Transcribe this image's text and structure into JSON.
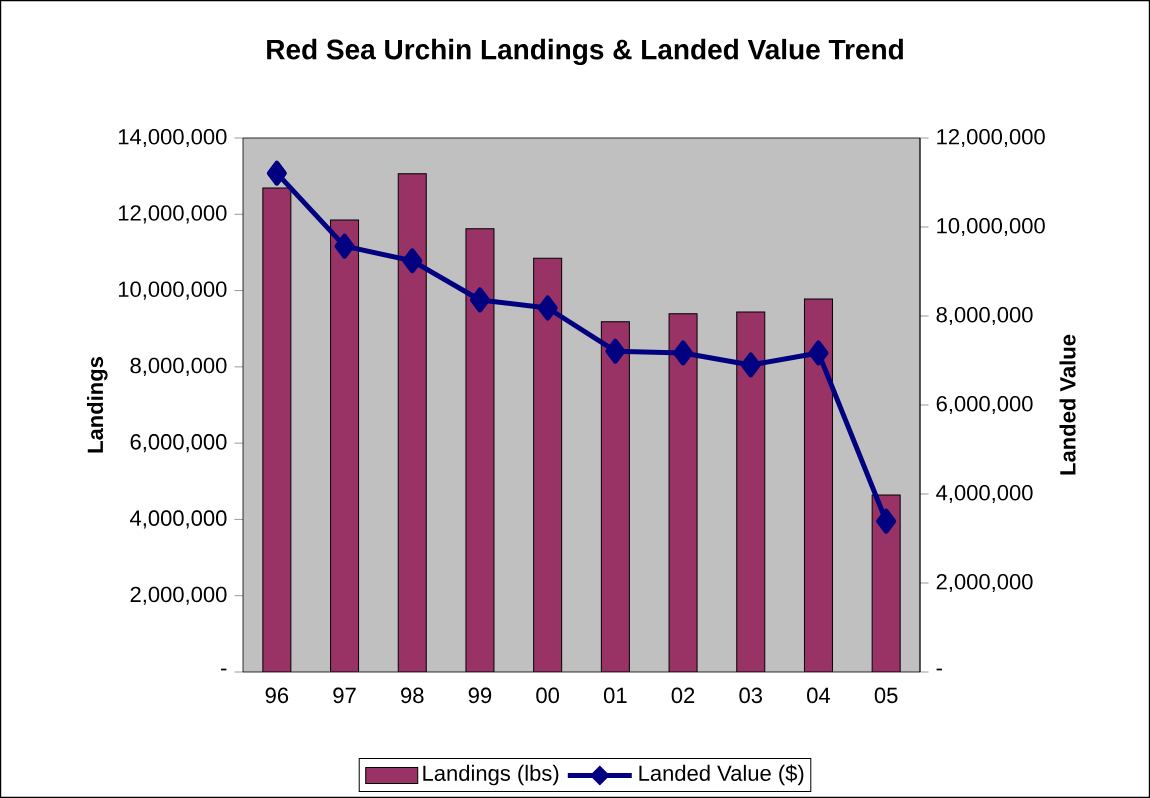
{
  "chart_data": {
    "type": "bar",
    "title": "Red Sea Urchin Landings & Landed Value Trend",
    "ylabel": "Landings",
    "y2label": "Landed Value",
    "categories": [
      "96",
      "97",
      "98",
      "99",
      "00",
      "01",
      "02",
      "03",
      "04",
      "05"
    ],
    "series": [
      {
        "name": "Landings (lbs)",
        "color": "#993366",
        "values": [
          12690000,
          11850000,
          13060000,
          11620000,
          10850000,
          9180000,
          9390000,
          9440000,
          9780000,
          4640000
        ]
      },
      {
        "name": "Landed Value ($)",
        "type": "line",
        "axis": "y2",
        "color": "#000080",
        "marker": "diamond",
        "values": [
          11210000,
          9570000,
          9240000,
          8360000,
          8180000,
          7210000,
          7170000,
          6900000,
          7170000,
          3390000
        ]
      }
    ],
    "ylim": [
      0,
      14000000
    ],
    "yticks": [
      {
        "value": 0,
        "label": "-"
      },
      {
        "value": 2000000,
        "label": "2,000,000"
      },
      {
        "value": 4000000,
        "label": "4,000,000"
      },
      {
        "value": 6000000,
        "label": "6,000,000"
      },
      {
        "value": 8000000,
        "label": "8,000,000"
      },
      {
        "value": 10000000,
        "label": "10,000,000"
      },
      {
        "value": 12000000,
        "label": "12,000,000"
      },
      {
        "value": 14000000,
        "label": "14,000,000"
      }
    ],
    "y2lim": [
      0,
      12000000
    ],
    "y2ticks": [
      {
        "value": 0,
        "label": "-"
      },
      {
        "value": 2000000,
        "label": "2,000,000"
      },
      {
        "value": 4000000,
        "label": "4,000,000"
      },
      {
        "value": 6000000,
        "label": "6,000,000"
      },
      {
        "value": 8000000,
        "label": "8,000,000"
      },
      {
        "value": 10000000,
        "label": "10,000,000"
      },
      {
        "value": 12000000,
        "label": "12,000,000"
      }
    ],
    "grid": false,
    "legend": "bottom"
  }
}
